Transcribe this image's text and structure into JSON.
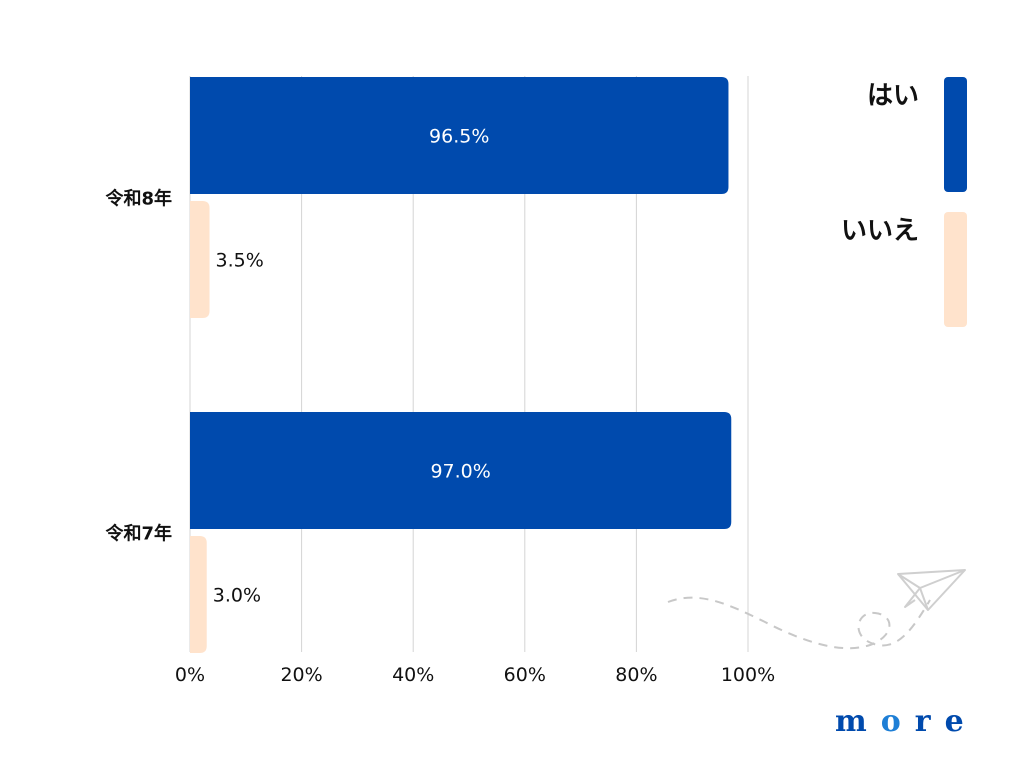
{
  "chart_data": {
    "type": "bar",
    "orientation": "horizontal",
    "categories": [
      "令和8年",
      "令和7年"
    ],
    "series": [
      {
        "name": "はい",
        "values": [
          96.5,
          97.0
        ],
        "labels": [
          "96.5%",
          "97.0%"
        ],
        "color": "#004aad"
      },
      {
        "name": "いいえ",
        "values": [
          3.5,
          3.0
        ],
        "labels": [
          "3.5%",
          "3.0%"
        ],
        "color": "#ffe3cc"
      }
    ],
    "xlim": [
      0,
      100
    ],
    "xticks": [
      "0%",
      "20%",
      "40%",
      "60%",
      "80%",
      "100%"
    ],
    "grid": true,
    "legend_position": "right"
  },
  "logo": {
    "text": "more",
    "color": "#004aad",
    "accent_color": "#1e7fd6"
  },
  "decoration": {
    "icon": "paper-plane-icon",
    "line_color": "#cccccc"
  }
}
